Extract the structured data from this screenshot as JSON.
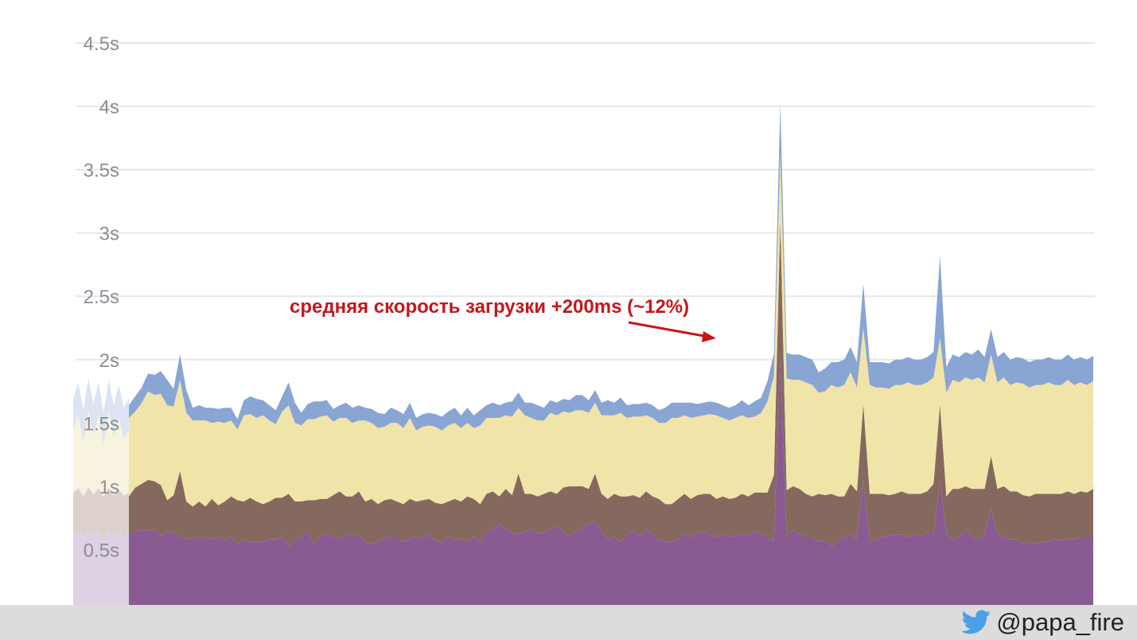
{
  "chart_data": {
    "type": "area",
    "stacked": true,
    "title": "",
    "xlabel": "",
    "ylabel": "",
    "yticks": [
      "0.5s",
      "1s",
      "1.5s",
      "2s",
      "2.5s",
      "3s",
      "3.5s",
      "4s",
      "4.5s"
    ],
    "ylim": [
      0,
      4.5
    ],
    "grid": true,
    "annotation": "средняя скорость загрузки +200ms (~12%)",
    "colors": [
      "#8a5a92",
      "#86695e",
      "#f1e4a9",
      "#88a5d4"
    ],
    "series": [
      {
        "values": [
          0.62,
          0.64,
          0.66,
          0.65,
          0.66,
          0.61,
          0.64,
          0.63,
          0.6,
          0.58,
          0.59,
          0.6,
          0.59,
          0.58,
          0.6,
          0.58,
          0.6,
          0.54,
          0.58,
          0.56,
          0.56,
          0.56,
          0.58,
          0.58,
          0.61,
          0.52,
          0.58,
          0.6,
          0.64,
          0.54,
          0.6,
          0.62,
          0.6,
          0.58,
          0.62,
          0.6,
          0.62,
          0.56,
          0.55,
          0.56,
          0.59,
          0.6,
          0.6,
          0.56,
          0.58,
          0.6,
          0.59,
          0.62,
          0.57,
          0.56,
          0.6,
          0.58,
          0.58,
          0.56,
          0.6,
          0.56,
          0.64,
          0.66,
          0.7,
          0.66,
          0.63,
          0.62,
          0.64,
          0.66,
          0.62,
          0.64,
          0.66,
          0.68,
          0.64,
          0.6,
          0.65,
          0.67,
          0.7,
          0.72,
          0.64,
          0.58,
          0.6,
          0.56,
          0.62,
          0.65,
          0.61,
          0.66,
          0.62,
          0.58,
          0.56,
          0.56,
          0.58,
          0.62,
          0.6,
          0.63,
          0.64,
          0.62,
          0.6,
          0.62,
          0.6,
          0.61,
          0.62,
          0.62,
          0.65,
          0.62,
          0.6,
          0.56,
          2.05,
          0.6,
          0.66,
          0.62,
          0.6,
          0.6,
          0.56,
          0.58,
          0.52,
          0.56,
          0.6,
          0.62,
          0.58,
          1.05,
          0.56,
          0.58,
          0.6,
          0.61,
          0.62,
          0.62,
          0.6,
          0.62,
          0.6,
          0.64,
          0.62,
          1.05,
          0.62,
          0.58,
          0.6,
          0.66,
          0.6,
          0.58,
          0.62,
          0.82,
          0.62,
          0.6,
          0.58,
          0.58,
          0.55,
          0.56,
          0.54,
          0.56,
          0.56,
          0.58,
          0.57,
          0.58,
          0.58,
          0.6,
          0.6,
          0.6
        ]
      },
      {
        "values": [
          0.3,
          0.35,
          0.36,
          0.4,
          0.38,
          0.4,
          0.25,
          0.3,
          0.52,
          0.3,
          0.25,
          0.28,
          0.25,
          0.32,
          0.25,
          0.3,
          0.32,
          0.35,
          0.3,
          0.35,
          0.32,
          0.3,
          0.3,
          0.33,
          0.3,
          0.42,
          0.3,
          0.28,
          0.25,
          0.35,
          0.3,
          0.28,
          0.33,
          0.38,
          0.3,
          0.32,
          0.34,
          0.32,
          0.35,
          0.3,
          0.3,
          0.3,
          0.28,
          0.3,
          0.32,
          0.28,
          0.3,
          0.28,
          0.3,
          0.3,
          0.28,
          0.32,
          0.3,
          0.36,
          0.3,
          0.3,
          0.3,
          0.3,
          0.22,
          0.32,
          0.3,
          0.48,
          0.3,
          0.28,
          0.3,
          0.3,
          0.3,
          0.26,
          0.35,
          0.4,
          0.35,
          0.33,
          0.28,
          0.38,
          0.3,
          0.32,
          0.34,
          0.36,
          0.3,
          0.28,
          0.3,
          0.3,
          0.3,
          0.32,
          0.3,
          0.3,
          0.32,
          0.32,
          0.3,
          0.3,
          0.3,
          0.32,
          0.3,
          0.3,
          0.3,
          0.3,
          0.32,
          0.3,
          0.3,
          0.33,
          0.35,
          0.53,
          1.05,
          0.37,
          0.34,
          0.36,
          0.34,
          0.32,
          0.38,
          0.35,
          0.42,
          0.36,
          0.32,
          0.4,
          0.38,
          0.6,
          0.38,
          0.36,
          0.34,
          0.32,
          0.32,
          0.34,
          0.34,
          0.32,
          0.34,
          0.32,
          0.4,
          0.6,
          0.3,
          0.4,
          0.38,
          0.34,
          0.38,
          0.4,
          0.36,
          0.42,
          0.36,
          0.4,
          0.38,
          0.38,
          0.38,
          0.36,
          0.4,
          0.38,
          0.38,
          0.36,
          0.37,
          0.38,
          0.36,
          0.36,
          0.35,
          0.38
        ]
      },
      {
        "values": [
          0.62,
          0.6,
          0.64,
          0.7,
          0.68,
          0.72,
          0.75,
          0.7,
          0.72,
          0.7,
          0.68,
          0.64,
          0.68,
          0.6,
          0.66,
          0.62,
          0.6,
          0.56,
          0.68,
          0.66,
          0.66,
          0.7,
          0.64,
          0.58,
          0.68,
          0.7,
          0.62,
          0.6,
          0.64,
          0.64,
          0.65,
          0.66,
          0.58,
          0.58,
          0.62,
          0.58,
          0.56,
          0.64,
          0.6,
          0.6,
          0.58,
          0.6,
          0.62,
          0.6,
          0.64,
          0.56,
          0.58,
          0.58,
          0.6,
          0.58,
          0.6,
          0.6,
          0.58,
          0.58,
          0.56,
          0.62,
          0.6,
          0.58,
          0.62,
          0.58,
          0.62,
          0.52,
          0.62,
          0.6,
          0.6,
          0.58,
          0.62,
          0.62,
          0.6,
          0.58,
          0.6,
          0.6,
          0.6,
          0.56,
          0.62,
          0.66,
          0.62,
          0.66,
          0.62,
          0.62,
          0.64,
          0.6,
          0.62,
          0.6,
          0.64,
          0.68,
          0.64,
          0.62,
          0.64,
          0.62,
          0.62,
          0.63,
          0.66,
          0.62,
          0.62,
          0.63,
          0.62,
          0.62,
          0.6,
          0.63,
          0.72,
          0.78,
          0.52,
          0.88,
          0.84,
          0.86,
          0.88,
          0.88,
          0.8,
          0.82,
          0.86,
          0.86,
          0.88,
          0.88,
          0.82,
          0.6,
          0.86,
          0.84,
          0.84,
          0.84,
          0.86,
          0.84,
          0.88,
          0.86,
          0.86,
          0.86,
          0.84,
          0.52,
          0.82,
          0.86,
          0.84,
          0.86,
          0.86,
          0.88,
          0.84,
          0.8,
          0.84,
          0.86,
          0.84,
          0.86,
          0.88,
          0.86,
          0.86,
          0.86,
          0.88,
          0.86,
          0.86,
          0.88,
          0.86,
          0.86,
          0.85,
          0.85
        ]
      },
      {
        "values": [
          0.1,
          0.12,
          0.12,
          0.14,
          0.16,
          0.18,
          0.2,
          0.14,
          0.2,
          0.18,
          0.1,
          0.12,
          0.1,
          0.12,
          0.1,
          0.12,
          0.1,
          0.08,
          0.12,
          0.14,
          0.15,
          0.12,
          0.12,
          0.11,
          0.12,
          0.18,
          0.16,
          0.1,
          0.12,
          0.14,
          0.12,
          0.12,
          0.1,
          0.1,
          0.12,
          0.12,
          0.12,
          0.1,
          0.11,
          0.12,
          0.1,
          0.12,
          0.1,
          0.11,
          0.12,
          0.1,
          0.1,
          0.1,
          0.1,
          0.11,
          0.11,
          0.12,
          0.1,
          0.12,
          0.1,
          0.12,
          0.1,
          0.12,
          0.1,
          0.1,
          0.12,
          0.12,
          0.1,
          0.12,
          0.12,
          0.1,
          0.1,
          0.1,
          0.1,
          0.1,
          0.12,
          0.12,
          0.1,
          0.1,
          0.1,
          0.12,
          0.1,
          0.12,
          0.1,
          0.1,
          0.1,
          0.1,
          0.1,
          0.1,
          0.12,
          0.12,
          0.12,
          0.1,
          0.12,
          0.1,
          0.1,
          0.1,
          0.1,
          0.1,
          0.1,
          0.1,
          0.12,
          0.1,
          0.12,
          0.12,
          0.16,
          0.18,
          0.4,
          0.2,
          0.2,
          0.2,
          0.2,
          0.2,
          0.16,
          0.18,
          0.18,
          0.2,
          0.2,
          0.2,
          0.2,
          0.35,
          0.18,
          0.2,
          0.2,
          0.2,
          0.2,
          0.2,
          0.2,
          0.2,
          0.2,
          0.2,
          0.2,
          0.65,
          0.2,
          0.2,
          0.2,
          0.2,
          0.2,
          0.22,
          0.2,
          0.2,
          0.2,
          0.2,
          0.2,
          0.2,
          0.2,
          0.2,
          0.2,
          0.2,
          0.2,
          0.2,
          0.2,
          0.2,
          0.2,
          0.2,
          0.2,
          0.2
        ]
      }
    ]
  },
  "footer": {
    "handle": "@papa_fire",
    "icon": "twitter-bird-icon"
  }
}
